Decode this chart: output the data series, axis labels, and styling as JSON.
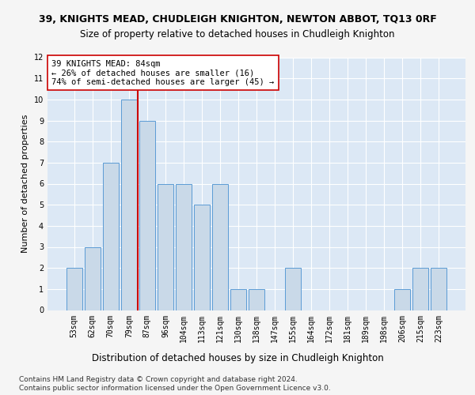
{
  "title": "39, KNIGHTS MEAD, CHUDLEIGH KNIGHTON, NEWTON ABBOT, TQ13 0RF",
  "subtitle": "Size of property relative to detached houses in Chudleigh Knighton",
  "xlabel": "Distribution of detached houses by size in Chudleigh Knighton",
  "ylabel": "Number of detached properties",
  "categories": [
    "53sqm",
    "62sqm",
    "70sqm",
    "79sqm",
    "87sqm",
    "96sqm",
    "104sqm",
    "113sqm",
    "121sqm",
    "130sqm",
    "138sqm",
    "147sqm",
    "155sqm",
    "164sqm",
    "172sqm",
    "181sqm",
    "189sqm",
    "198sqm",
    "206sqm",
    "215sqm",
    "223sqm"
  ],
  "values": [
    2,
    3,
    7,
    10,
    9,
    6,
    6,
    5,
    6,
    1,
    1,
    0,
    2,
    0,
    0,
    0,
    0,
    0,
    1,
    2,
    2
  ],
  "bar_color": "#c9d9e8",
  "bar_edge_color": "#5b9bd5",
  "vline_x_index": 3.5,
  "vline_color": "#cc0000",
  "annotation_text": "39 KNIGHTS MEAD: 84sqm\n← 26% of detached houses are smaller (16)\n74% of semi-detached houses are larger (45) →",
  "annotation_box_color": "#ffffff",
  "annotation_box_edge": "#cc0000",
  "ylim": [
    0,
    12
  ],
  "yticks": [
    0,
    1,
    2,
    3,
    4,
    5,
    6,
    7,
    8,
    9,
    10,
    11,
    12
  ],
  "footer_line1": "Contains HM Land Registry data © Crown copyright and database right 2024.",
  "footer_line2": "Contains public sector information licensed under the Open Government Licence v3.0.",
  "bg_color": "#dce8f5",
  "grid_color": "#ffffff",
  "fig_bg_color": "#f5f5f5",
  "title_fontsize": 9,
  "subtitle_fontsize": 8.5,
  "xlabel_fontsize": 8.5,
  "ylabel_fontsize": 8,
  "tick_fontsize": 7,
  "annot_fontsize": 7.5,
  "footer_fontsize": 6.5
}
